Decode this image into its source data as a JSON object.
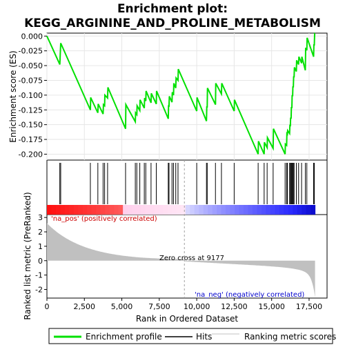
{
  "chart_data": {
    "type": "line",
    "title_line1": "Enrichment plot:",
    "title_line2": "KEGG_ARGININE_AND_PROLINE_METABOLISM",
    "xlabel": "Rank in Ordered Dataset",
    "ylabel_top": "Enrichment score (ES)",
    "ylabel_bottom": "Ranked list metric (PreRanked)",
    "xlim": [
      0,
      18700
    ],
    "es_ylim": [
      -0.21,
      0.005
    ],
    "metric_ylim": [
      -2.6,
      3.2
    ],
    "x_ticks": [
      0,
      2500,
      5000,
      7500,
      10000,
      12500,
      15000,
      17500
    ],
    "x_tick_labels": [
      "0",
      "2,500",
      "5,000",
      "7,500",
      "10,000",
      "12,500",
      "15,000",
      "17,500"
    ],
    "es_ticks": [
      0.0,
      -0.025,
      -0.05,
      -0.075,
      -0.1,
      -0.125,
      -0.15,
      -0.175,
      -0.2
    ],
    "es_tick_labels": [
      "0.000",
      "-0.025",
      "-0.050",
      "-0.075",
      "-0.100",
      "-0.125",
      "-0.150",
      "-0.175",
      "-0.200"
    ],
    "metric_ticks": [
      3,
      2,
      1,
      0,
      -1,
      -2
    ],
    "metric_tick_labels": [
      "3",
      "2",
      "1",
      "0",
      "-1",
      "-2"
    ],
    "zero_cross": 9177,
    "zero_cross_label": "Zero cross at 9177",
    "pos_label": "'na_pos' (positively correlated)",
    "neg_label": "'na_neg' (negatively correlated)",
    "n_genes": 17900,
    "hits": [
      860,
      920,
      2900,
      3400,
      3750,
      3850,
      4050,
      5250,
      5900,
      6000,
      6200,
      6500,
      6600,
      6950,
      7300,
      8100,
      8150,
      8350,
      8450,
      8600,
      8750,
      10000,
      10650,
      10700,
      11250,
      11650,
      12500,
      14100,
      14500,
      14700,
      15100,
      15900,
      16000,
      16050,
      16200,
      16250,
      16300,
      16350,
      16400,
      16450,
      16500,
      16650,
      16800,
      17000,
      17250,
      17350,
      17800,
      17850
    ],
    "es_points": [
      [
        0,
        0.0
      ],
      [
        860,
        -0.048
      ],
      [
        920,
        -0.012
      ],
      [
        2900,
        -0.125
      ],
      [
        2920,
        -0.104
      ],
      [
        3400,
        -0.13
      ],
      [
        3420,
        -0.115
      ],
      [
        3750,
        -0.132
      ],
      [
        3770,
        -0.116
      ],
      [
        3850,
        -0.118
      ],
      [
        3870,
        -0.1
      ],
      [
        4050,
        -0.105
      ],
      [
        4070,
        -0.087
      ],
      [
        5250,
        -0.157
      ],
      [
        5270,
        -0.116
      ],
      [
        5900,
        -0.145
      ],
      [
        5920,
        -0.13
      ],
      [
        6000,
        -0.133
      ],
      [
        6020,
        -0.118
      ],
      [
        6200,
        -0.126
      ],
      [
        6220,
        -0.108
      ],
      [
        6500,
        -0.122
      ],
      [
        6520,
        -0.105
      ],
      [
        6600,
        -0.11
      ],
      [
        6620,
        -0.093
      ],
      [
        6950,
        -0.113
      ],
      [
        6970,
        -0.097
      ],
      [
        7300,
        -0.115
      ],
      [
        7320,
        -0.093
      ],
      [
        8100,
        -0.14
      ],
      [
        8120,
        -0.117
      ],
      [
        8150,
        -0.12
      ],
      [
        8170,
        -0.102
      ],
      [
        8350,
        -0.112
      ],
      [
        8370,
        -0.095
      ],
      [
        8450,
        -0.1
      ],
      [
        8470,
        -0.08
      ],
      [
        8600,
        -0.088
      ],
      [
        8620,
        -0.071
      ],
      [
        8750,
        -0.075
      ],
      [
        8770,
        -0.056
      ],
      [
        10000,
        -0.127
      ],
      [
        10020,
        -0.104
      ],
      [
        10650,
        -0.144
      ],
      [
        10670,
        -0.12
      ],
      [
        10700,
        -0.12
      ],
      [
        10720,
        -0.088
      ],
      [
        11250,
        -0.116
      ],
      [
        11270,
        -0.08
      ],
      [
        11650,
        -0.098
      ],
      [
        11670,
        -0.08
      ],
      [
        12500,
        -0.127
      ],
      [
        12520,
        -0.108
      ],
      [
        14100,
        -0.2
      ],
      [
        14120,
        -0.178
      ],
      [
        14500,
        -0.2
      ],
      [
        14520,
        -0.18
      ],
      [
        14700,
        -0.189
      ],
      [
        14720,
        -0.172
      ],
      [
        15100,
        -0.19
      ],
      [
        15120,
        -0.157
      ],
      [
        15900,
        -0.2
      ],
      [
        15920,
        -0.183
      ],
      [
        16000,
        -0.185
      ],
      [
        16020,
        -0.165
      ],
      [
        16050,
        -0.166
      ],
      [
        16070,
        -0.16
      ],
      [
        16200,
        -0.165
      ],
      [
        16220,
        -0.15
      ],
      [
        16250,
        -0.153
      ],
      [
        16270,
        -0.138
      ],
      [
        16300,
        -0.14
      ],
      [
        16320,
        -0.12
      ],
      [
        16350,
        -0.122
      ],
      [
        16370,
        -0.1
      ],
      [
        16400,
        -0.102
      ],
      [
        16420,
        -0.085
      ],
      [
        16450,
        -0.087
      ],
      [
        16470,
        -0.068
      ],
      [
        16500,
        -0.07
      ],
      [
        16520,
        -0.053
      ],
      [
        16650,
        -0.06
      ],
      [
        16670,
        -0.041
      ],
      [
        16800,
        -0.048
      ],
      [
        16820,
        -0.035
      ],
      [
        17000,
        -0.046
      ],
      [
        17020,
        -0.035
      ],
      [
        17250,
        -0.058
      ],
      [
        17270,
        -0.02
      ],
      [
        17350,
        -0.024
      ],
      [
        17370,
        -0.003
      ],
      [
        17800,
        -0.035
      ],
      [
        17820,
        -0.015
      ],
      [
        17850,
        -0.015
      ],
      [
        17870,
        0.003
      ],
      [
        17900,
        0.002
      ]
    ]
  },
  "legend": {
    "enrichment_label": "Enrichment profile",
    "hits_label": "Hits",
    "ranking_label": "Ranking metric scores"
  },
  "colors": {
    "es_line": "#00e000",
    "hit": "#000000",
    "metric_fill": "#c0c0c0",
    "pos_text": "#cc0000",
    "neg_text": "#0000cc",
    "zero_line": "#a0a0a0"
  }
}
